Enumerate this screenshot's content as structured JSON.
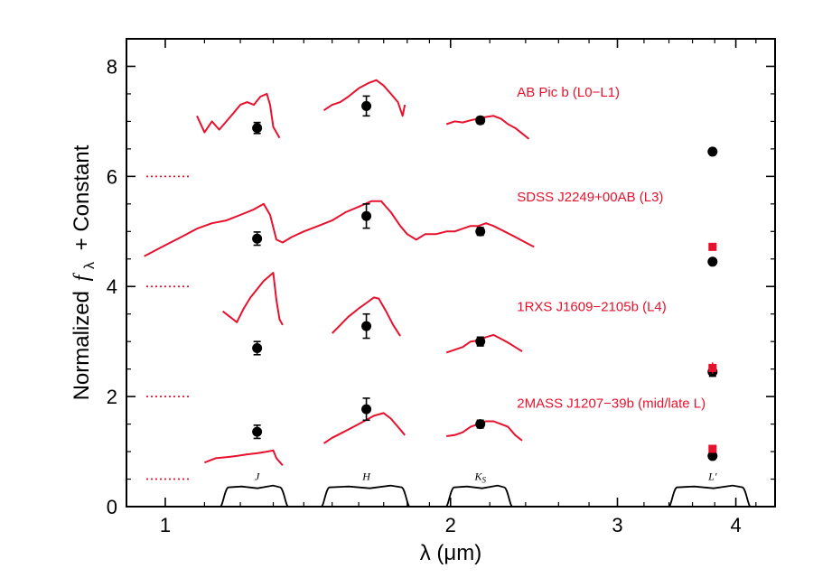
{
  "chart_data": {
    "type": "scatter",
    "title": "",
    "xlabel": "λ (μm)",
    "ylabel": "Normalized f_λ + Constant",
    "ylabel_text": "Normalized",
    "ylabel_f": "f",
    "ylabel_sub": "λ",
    "ylabel_tail": "+ Constant",
    "x_scale": "log",
    "xlim": [
      0.91,
      4.4
    ],
    "ylim": [
      0,
      8.5
    ],
    "x_ticks": [
      1,
      2,
      3,
      4
    ],
    "x_tick_labels": [
      "1",
      "2",
      "3",
      "4"
    ],
    "x_minor_ticks": [
      1.1,
      1.2,
      1.3,
      1.4,
      1.5,
      1.6,
      1.7,
      1.8,
      1.9,
      2.2,
      2.4,
      2.6,
      2.8,
      3.2,
      3.4,
      3.6,
      3.8,
      4.2
    ],
    "y_ticks": [
      0,
      2,
      4,
      6,
      8
    ],
    "y_tick_labels": [
      "0",
      "2",
      "4",
      "6",
      "8"
    ],
    "y_minor_ticks": [
      0.5,
      1,
      1.5,
      2.5,
      3,
      3.5,
      4.5,
      5,
      5.5,
      6.5,
      7,
      7.5
    ],
    "grid": false,
    "colors": {
      "spectrum": "#e8112d",
      "photometry": "#000000",
      "model": "#e8112d"
    },
    "offset_markers": [
      {
        "y": 6.0,
        "x": [
          0.91,
          1.06
        ]
      },
      {
        "y": 4.0,
        "x": [
          0.91,
          1.06
        ]
      },
      {
        "y": 2.0,
        "x": [
          0.91,
          1.06
        ]
      },
      {
        "y": 0.5,
        "x": [
          0.91,
          1.06
        ]
      }
    ],
    "series": [
      {
        "name": "AB Pic b (L0−L1)",
        "spectrum": [
          [
            [
              1.08,
              7.1
            ],
            [
              1.1,
              6.8
            ],
            [
              1.12,
              7.0
            ],
            [
              1.14,
              6.85
            ],
            [
              1.16,
              7.0
            ],
            [
              1.18,
              7.15
            ],
            [
              1.2,
              7.3
            ],
            [
              1.22,
              7.35
            ],
            [
              1.24,
              7.3
            ],
            [
              1.26,
              7.45
            ],
            [
              1.28,
              7.5
            ],
            [
              1.29,
              7.3
            ],
            [
              1.3,
              6.9
            ],
            [
              1.32,
              6.7
            ]
          ],
          [
            [
              1.47,
              7.2
            ],
            [
              1.5,
              7.3
            ],
            [
              1.53,
              7.35
            ],
            [
              1.56,
              7.45
            ],
            [
              1.6,
              7.6
            ],
            [
              1.64,
              7.7
            ],
            [
              1.67,
              7.75
            ],
            [
              1.7,
              7.65
            ],
            [
              1.73,
              7.5
            ],
            [
              1.76,
              7.35
            ],
            [
              1.78,
              7.1
            ],
            [
              1.79,
              7.3
            ]
          ],
          [
            [
              1.98,
              6.95
            ],
            [
              2.02,
              7.0
            ],
            [
              2.06,
              6.98
            ],
            [
              2.1,
              7.02
            ],
            [
              2.14,
              7.05
            ],
            [
              2.18,
              7.08
            ],
            [
              2.22,
              7.1
            ],
            [
              2.26,
              7.05
            ],
            [
              2.3,
              6.95
            ],
            [
              2.34,
              6.88
            ],
            [
              2.38,
              6.78
            ],
            [
              2.42,
              6.68
            ]
          ]
        ],
        "photometry": [
          {
            "x": 1.25,
            "y": 6.88,
            "err": 0.1
          },
          {
            "x": 1.63,
            "y": 7.28,
            "err": 0.18
          },
          {
            "x": 2.15,
            "y": 7.02,
            "err": 0.06
          },
          {
            "x": 3.78,
            "y": 6.45,
            "err": 0
          }
        ],
        "model": []
      },
      {
        "name": "SDSS J2249+00AB (L3)",
        "spectrum": [
          [
            [
              0.95,
              4.55
            ],
            [
              1.0,
              4.75
            ],
            [
              1.04,
              4.9
            ],
            [
              1.08,
              5.05
            ],
            [
              1.12,
              5.15
            ],
            [
              1.16,
              5.2
            ],
            [
              1.2,
              5.3
            ],
            [
              1.24,
              5.4
            ],
            [
              1.27,
              5.5
            ],
            [
              1.29,
              5.3
            ],
            [
              1.31,
              4.85
            ],
            [
              1.33,
              4.8
            ],
            [
              1.36,
              4.9
            ],
            [
              1.4,
              5.0
            ],
            [
              1.45,
              5.1
            ],
            [
              1.5,
              5.2
            ],
            [
              1.55,
              5.35
            ],
            [
              1.6,
              5.45
            ],
            [
              1.65,
              5.55
            ],
            [
              1.69,
              5.55
            ],
            [
              1.73,
              5.35
            ],
            [
              1.77,
              5.1
            ],
            [
              1.8,
              4.95
            ],
            [
              1.84,
              4.85
            ],
            [
              1.88,
              4.95
            ],
            [
              1.93,
              4.95
            ],
            [
              1.98,
              5.0
            ],
            [
              2.02,
              5.0
            ],
            [
              2.06,
              5.05
            ],
            [
              2.1,
              5.1
            ],
            [
              2.14,
              5.1
            ],
            [
              2.18,
              5.15
            ],
            [
              2.22,
              5.1
            ],
            [
              2.28,
              5.0
            ],
            [
              2.34,
              4.9
            ],
            [
              2.4,
              4.8
            ],
            [
              2.45,
              4.72
            ]
          ]
        ],
        "photometry": [
          {
            "x": 1.25,
            "y": 4.87,
            "err": 0.12
          },
          {
            "x": 1.63,
            "y": 5.28,
            "err": 0.22
          },
          {
            "x": 2.15,
            "y": 5.0,
            "err": 0.07
          },
          {
            "x": 3.78,
            "y": 4.45,
            "err": 0
          }
        ],
        "model": [
          {
            "x": 3.78,
            "y": 4.72
          }
        ]
      },
      {
        "name": "1RXS J1609−2105b (L4)",
        "spectrum": [
          [
            [
              1.15,
              3.55
            ],
            [
              1.17,
              3.45
            ],
            [
              1.19,
              3.35
            ],
            [
              1.21,
              3.6
            ],
            [
              1.23,
              3.8
            ],
            [
              1.25,
              3.95
            ],
            [
              1.27,
              4.1
            ],
            [
              1.29,
              4.2
            ],
            [
              1.3,
              4.25
            ],
            [
              1.31,
              3.75
            ],
            [
              1.32,
              3.4
            ],
            [
              1.33,
              3.3
            ]
          ],
          [
            [
              1.5,
              3.15
            ],
            [
              1.53,
              3.3
            ],
            [
              1.56,
              3.45
            ],
            [
              1.6,
              3.6
            ],
            [
              1.63,
              3.7
            ],
            [
              1.66,
              3.8
            ],
            [
              1.68,
              3.78
            ],
            [
              1.71,
              3.55
            ],
            [
              1.74,
              3.3
            ],
            [
              1.77,
              3.1
            ]
          ],
          [
            [
              1.98,
              2.8
            ],
            [
              2.02,
              2.85
            ],
            [
              2.06,
              2.9
            ],
            [
              2.1,
              3.0
            ],
            [
              2.14,
              3.02
            ],
            [
              2.18,
              3.08
            ],
            [
              2.22,
              3.12
            ],
            [
              2.26,
              3.05
            ],
            [
              2.3,
              2.98
            ],
            [
              2.34,
              2.9
            ],
            [
              2.38,
              2.82
            ]
          ]
        ],
        "photometry": [
          {
            "x": 1.25,
            "y": 2.88,
            "err": 0.12
          },
          {
            "x": 1.63,
            "y": 3.28,
            "err": 0.22
          },
          {
            "x": 2.15,
            "y": 3.0,
            "err": 0.08
          },
          {
            "x": 3.78,
            "y": 2.45,
            "err": 0.08
          }
        ],
        "model": [
          {
            "x": 3.78,
            "y": 2.52,
            "err": 0.1
          }
        ]
      },
      {
        "name": "2MASS J1207−39b (mid/late L)",
        "spectrum": [
          [
            [
              1.1,
              0.8
            ],
            [
              1.13,
              0.88
            ],
            [
              1.16,
              0.9
            ],
            [
              1.19,
              0.92
            ],
            [
              1.22,
              0.95
            ],
            [
              1.25,
              0.97
            ],
            [
              1.28,
              1.0
            ],
            [
              1.3,
              1.02
            ],
            [
              1.31,
              0.88
            ],
            [
              1.33,
              0.75
            ]
          ],
          [
            [
              1.47,
              1.15
            ],
            [
              1.5,
              1.25
            ],
            [
              1.54,
              1.35
            ],
            [
              1.58,
              1.45
            ],
            [
              1.62,
              1.55
            ],
            [
              1.66,
              1.65
            ],
            [
              1.7,
              1.7
            ],
            [
              1.73,
              1.6
            ],
            [
              1.76,
              1.45
            ],
            [
              1.79,
              1.3
            ]
          ],
          [
            [
              1.98,
              1.28
            ],
            [
              2.02,
              1.3
            ],
            [
              2.06,
              1.35
            ],
            [
              2.1,
              1.45
            ],
            [
              2.14,
              1.5
            ],
            [
              2.18,
              1.55
            ],
            [
              2.22,
              1.55
            ],
            [
              2.26,
              1.5
            ],
            [
              2.3,
              1.45
            ],
            [
              2.34,
              1.3
            ],
            [
              2.38,
              1.2
            ]
          ]
        ],
        "photometry": [
          {
            "x": 1.25,
            "y": 1.36,
            "err": 0.12
          },
          {
            "x": 1.63,
            "y": 1.77,
            "err": 0.2
          },
          {
            "x": 2.15,
            "y": 1.5,
            "err": 0.07
          },
          {
            "x": 3.78,
            "y": 0.92,
            "err": 0
          }
        ],
        "model": [
          {
            "x": 3.78,
            "y": 1.05
          }
        ]
      }
    ],
    "label_anchors": [
      {
        "x": 2.35,
        "y": 7.45
      },
      {
        "x": 2.35,
        "y": 5.55
      },
      {
        "x": 2.35,
        "y": 3.55
      },
      {
        "x": 2.35,
        "y": 1.8
      }
    ],
    "filters": [
      {
        "name": "J",
        "label_main": "J",
        "label_sub": "",
        "range": [
          1.15,
          1.34
        ],
        "x_label": 1.25
      },
      {
        "name": "H",
        "label_main": "H",
        "label_sub": "",
        "range": [
          1.47,
          1.8
        ],
        "x_label": 1.63
      },
      {
        "name": "Ks",
        "label_main": "K",
        "label_sub": "S",
        "range": [
          1.99,
          2.31
        ],
        "x_label": 2.15
      },
      {
        "name": "L′",
        "label_main": "L′",
        "label_sub": "",
        "range": [
          3.42,
          4.12
        ],
        "x_label": 3.78
      }
    ],
    "filter_curve_height": 0.35,
    "filter_label_y": 0.55
  }
}
